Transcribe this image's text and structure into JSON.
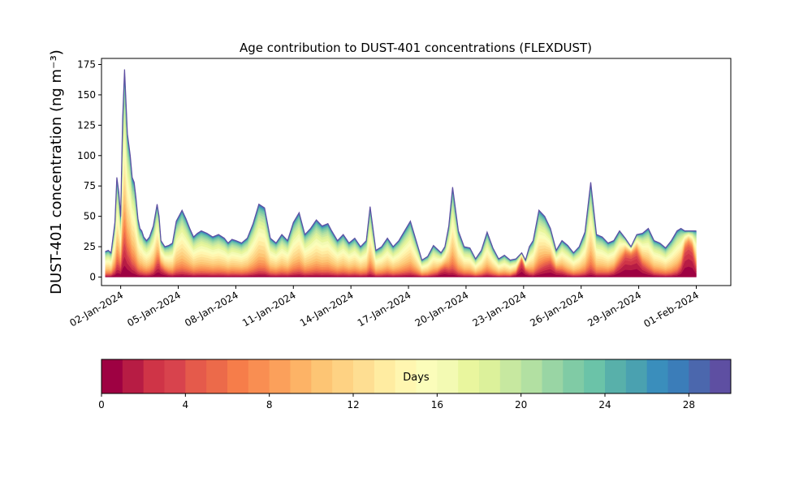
{
  "chart_data": [
    {
      "type": "area",
      "title": "Age contribution to DUST-401 concentrations (FLEXDUST)",
      "ylabel": "DUST-401 concentration (ng m⁻³)",
      "xlabel": "",
      "ylim": [
        -7,
        180
      ],
      "yticks": [
        0,
        25,
        50,
        75,
        100,
        125,
        150,
        175
      ],
      "x_start": "2023-12-31",
      "xticks": [
        "02-Jan-2024",
        "05-Jan-2024",
        "08-Jan-2024",
        "11-Jan-2024",
        "14-Jan-2024",
        "17-Jan-2024",
        "20-Jan-2024",
        "23-Jan-2024",
        "26-Jan-2024",
        "29-Jan-2024",
        "01-Feb-2024"
      ],
      "xtick_days": [
        1,
        4,
        7,
        10,
        13,
        16,
        19,
        22,
        25,
        28,
        31
      ],
      "xlim_days": [
        0.0,
        32.8
      ],
      "grid": false,
      "stacked": true,
      "n_layers": 30,
      "total_profile": {
        "x_days": [
          0.2,
          0.35,
          0.5,
          0.7,
          0.8,
          0.9,
          1.0,
          1.1,
          1.2,
          1.35,
          1.5,
          1.6,
          1.7,
          1.8,
          1.9,
          2.0,
          2.1,
          2.2,
          2.35,
          2.5,
          2.7,
          2.9,
          3.0,
          3.1,
          3.3,
          3.5,
          3.7,
          3.9,
          4.2,
          4.4,
          4.6,
          4.8,
          5.0,
          5.2,
          5.5,
          5.8,
          6.1,
          6.4,
          6.6,
          6.8,
          7.0,
          7.3,
          7.6,
          7.9,
          8.2,
          8.5,
          8.8,
          9.1,
          9.4,
          9.7,
          10.0,
          10.3,
          10.6,
          10.9,
          11.2,
          11.5,
          11.8,
          12.0,
          12.3,
          12.6,
          12.9,
          13.2,
          13.5,
          13.8,
          14.0,
          14.3,
          14.6,
          14.9,
          15.2,
          15.5,
          15.8,
          16.1,
          16.4,
          16.7,
          17.0,
          17.3,
          17.5,
          17.7,
          17.9,
          18.1,
          18.3,
          18.6,
          18.9,
          19.2,
          19.5,
          19.8,
          20.1,
          20.4,
          20.7,
          21.0,
          21.3,
          21.6,
          21.9,
          22.1,
          22.3,
          22.5,
          22.8,
          23.1,
          23.4,
          23.7,
          24.0,
          24.3,
          24.6,
          24.9,
          25.2,
          25.5,
          25.8,
          26.1,
          26.4,
          26.7,
          27.0,
          27.3,
          27.6,
          27.9,
          28.2,
          28.5,
          28.8,
          29.1,
          29.4,
          29.7,
          30.0,
          30.2,
          30.4,
          30.6,
          30.8,
          31.0
        ],
        "values": [
          21,
          22,
          20,
          45,
          82,
          70,
          50,
          130,
          171,
          118,
          100,
          82,
          78,
          65,
          48,
          40,
          38,
          33,
          30,
          33,
          42,
          60,
          50,
          30,
          25,
          26,
          28,
          46,
          55,
          48,
          40,
          33,
          36,
          38,
          36,
          33,
          35,
          32,
          28,
          31,
          30,
          28,
          32,
          44,
          60,
          57,
          32,
          28,
          35,
          30,
          45,
          53,
          35,
          40,
          47,
          42,
          44,
          38,
          30,
          35,
          28,
          32,
          25,
          30,
          58,
          22,
          25,
          32,
          25,
          30,
          38,
          46,
          30,
          14,
          17,
          26,
          23,
          20,
          25,
          42,
          74,
          38,
          25,
          24,
          15,
          22,
          37,
          24,
          15,
          18,
          14,
          15,
          20,
          14,
          25,
          30,
          55,
          50,
          40,
          22,
          30,
          26,
          20,
          25,
          37,
          78,
          35,
          33,
          28,
          30,
          38,
          32,
          25,
          35,
          36,
          40,
          30,
          28,
          24,
          30,
          38,
          40,
          38,
          38,
          38,
          38
        ],
        "young_fraction_note": ""
      }
    },
    {
      "type": "heatmap",
      "colorbar": true,
      "label": "Days",
      "vmin": 0,
      "vmax": 30,
      "ticks": [
        0,
        4,
        8,
        12,
        16,
        20,
        24,
        28
      ],
      "colors": [
        "#9e0142",
        "#b71c44",
        "#cf3447",
        "#d8434d",
        "#e55a4b",
        "#ec6a4a",
        "#f67d4a",
        "#f98e52",
        "#fba05b",
        "#fdb366",
        "#fdc574",
        "#fed283",
        "#fede92",
        "#ffeca1",
        "#fff6b0",
        "#fbfdba",
        "#f3fab3",
        "#e9f69e",
        "#dcf19b",
        "#c7e8a0",
        "#b2e0a2",
        "#99d5a4",
        "#80cba5",
        "#6bc3a8",
        "#58b0aa",
        "#4aa1b0",
        "#3a8ebc",
        "#3b7db9",
        "#4b67ad",
        "#5e4fa2"
      ]
    }
  ]
}
